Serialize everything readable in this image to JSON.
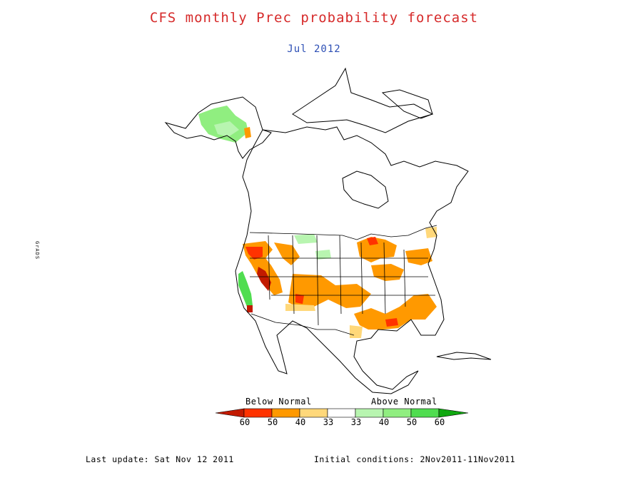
{
  "title": "CFS monthly Prec probability forecast",
  "subtitle": "Jul 2012",
  "colors": {
    "title": "#d62a2a",
    "subtitle": "#2d4fb5",
    "below_60": "#c21a00",
    "below_50": "#ff3300",
    "below_40": "#ff9900",
    "below_33": "#ffd87a",
    "above_33": "#b8f5b0",
    "above_40": "#90ee80",
    "above_50": "#50dd50",
    "above_60": "#10a810"
  },
  "legend": {
    "below_label": "Below Normal",
    "above_label": "Above Normal",
    "ticks": [
      "60",
      "50",
      "40",
      "33",
      "33",
      "40",
      "50",
      "60"
    ]
  },
  "footer": {
    "last_update": "Last update: Sat Nov 12 2011",
    "initial_conditions": "Initial conditions: 2Nov2011-11Nov2011"
  },
  "side_text": "GrADS"
}
